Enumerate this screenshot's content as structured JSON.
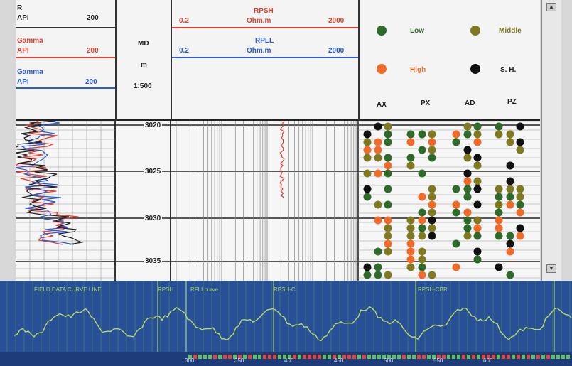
{
  "header": {
    "col1": {
      "r_label": "R",
      "r_unit": "API",
      "r_max": "200",
      "gamma1_label": "Gamma",
      "gamma1_unit": "API",
      "gamma1_max": "200",
      "gamma2_label": "Gamma",
      "gamma2_unit": "API",
      "gamma2_max": "200"
    },
    "depth": {
      "md_label": "MD",
      "unit": "m",
      "scale": "1:500"
    },
    "resistivity": {
      "rpsh_label": "RPSH",
      "rpsh_unit": "Ohm.m",
      "rpsh_min": "0.2",
      "rpsh_max": "2000",
      "rpll_label": "RPLL",
      "rpll_unit": "Ohm.m",
      "rpll_min": "0.2",
      "rpll_max": "2000"
    },
    "legend": {
      "items": [
        {
          "label": "Low",
          "color": "#2e6b2a"
        },
        {
          "label": "Middle",
          "color": "#7f7a22"
        },
        {
          "label": "High",
          "color": "#f26a2a"
        },
        {
          "label": "S. H.",
          "color": "#111111"
        }
      ]
    },
    "columns": [
      "AX",
      "PX",
      "AD",
      "PZ"
    ]
  },
  "depth_ticks": [
    "3020",
    "3025",
    "3030",
    "3035"
  ],
  "strip": {
    "labels": [
      "FIELD DATA CURVE LINE",
      "RPSH",
      "RFLLcurve",
      "RPSH-C",
      "RPSH-CBR"
    ],
    "ruler_numbers": [
      "300",
      "350",
      "400",
      "450",
      "500",
      "550",
      "600"
    ]
  }
}
